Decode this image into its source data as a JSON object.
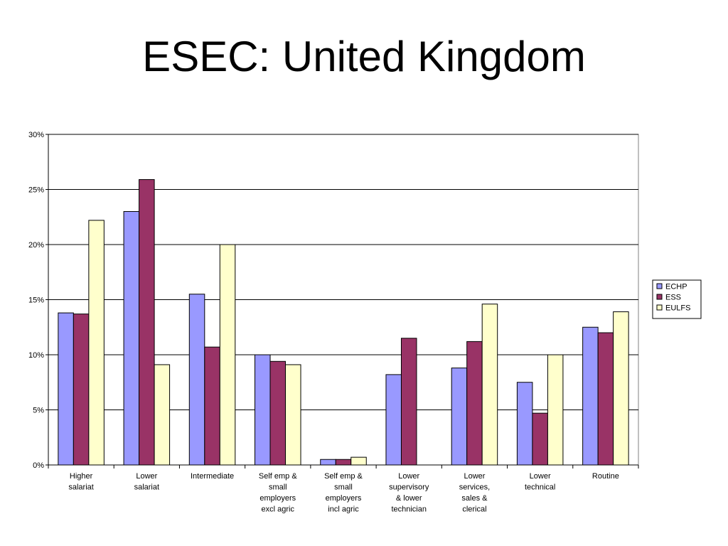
{
  "slide": {
    "title": "ESEC: United Kingdom"
  },
  "chart_data": {
    "type": "bar",
    "title": "",
    "xlabel": "",
    "ylabel": "",
    "ylim": [
      0,
      30
    ],
    "y_ticks": [
      "0%",
      "5%",
      "10%",
      "15%",
      "20%",
      "25%",
      "30%"
    ],
    "grid": true,
    "legend_position": "right",
    "categories": [
      [
        "Higher",
        "salariat"
      ],
      [
        "Lower",
        "salariat"
      ],
      [
        "Intermediate"
      ],
      [
        "Self emp &",
        "small",
        "employers",
        "excl agric"
      ],
      [
        "Self emp &",
        "small",
        "employers",
        "incl agric"
      ],
      [
        "Lower",
        "supervisory",
        "& lower",
        "technician"
      ],
      [
        "Lower",
        "services,",
        "sales &",
        "clerical"
      ],
      [
        "Lower",
        "technical"
      ],
      [
        "Routine"
      ]
    ],
    "series": [
      {
        "name": "ECHP",
        "color": "#9999ff",
        "values": [
          13.8,
          23.0,
          15.5,
          10.0,
          0.5,
          8.2,
          8.8,
          7.5,
          12.5
        ]
      },
      {
        "name": "ESS",
        "color": "#993366",
        "values": [
          13.7,
          25.9,
          10.7,
          9.4,
          0.5,
          11.5,
          11.2,
          4.7,
          12.0
        ]
      },
      {
        "name": "EULFS",
        "color": "#ffffcc",
        "values": [
          22.2,
          9.1,
          20.0,
          9.1,
          0.7,
          null,
          14.6,
          10.0,
          13.9
        ]
      }
    ]
  }
}
